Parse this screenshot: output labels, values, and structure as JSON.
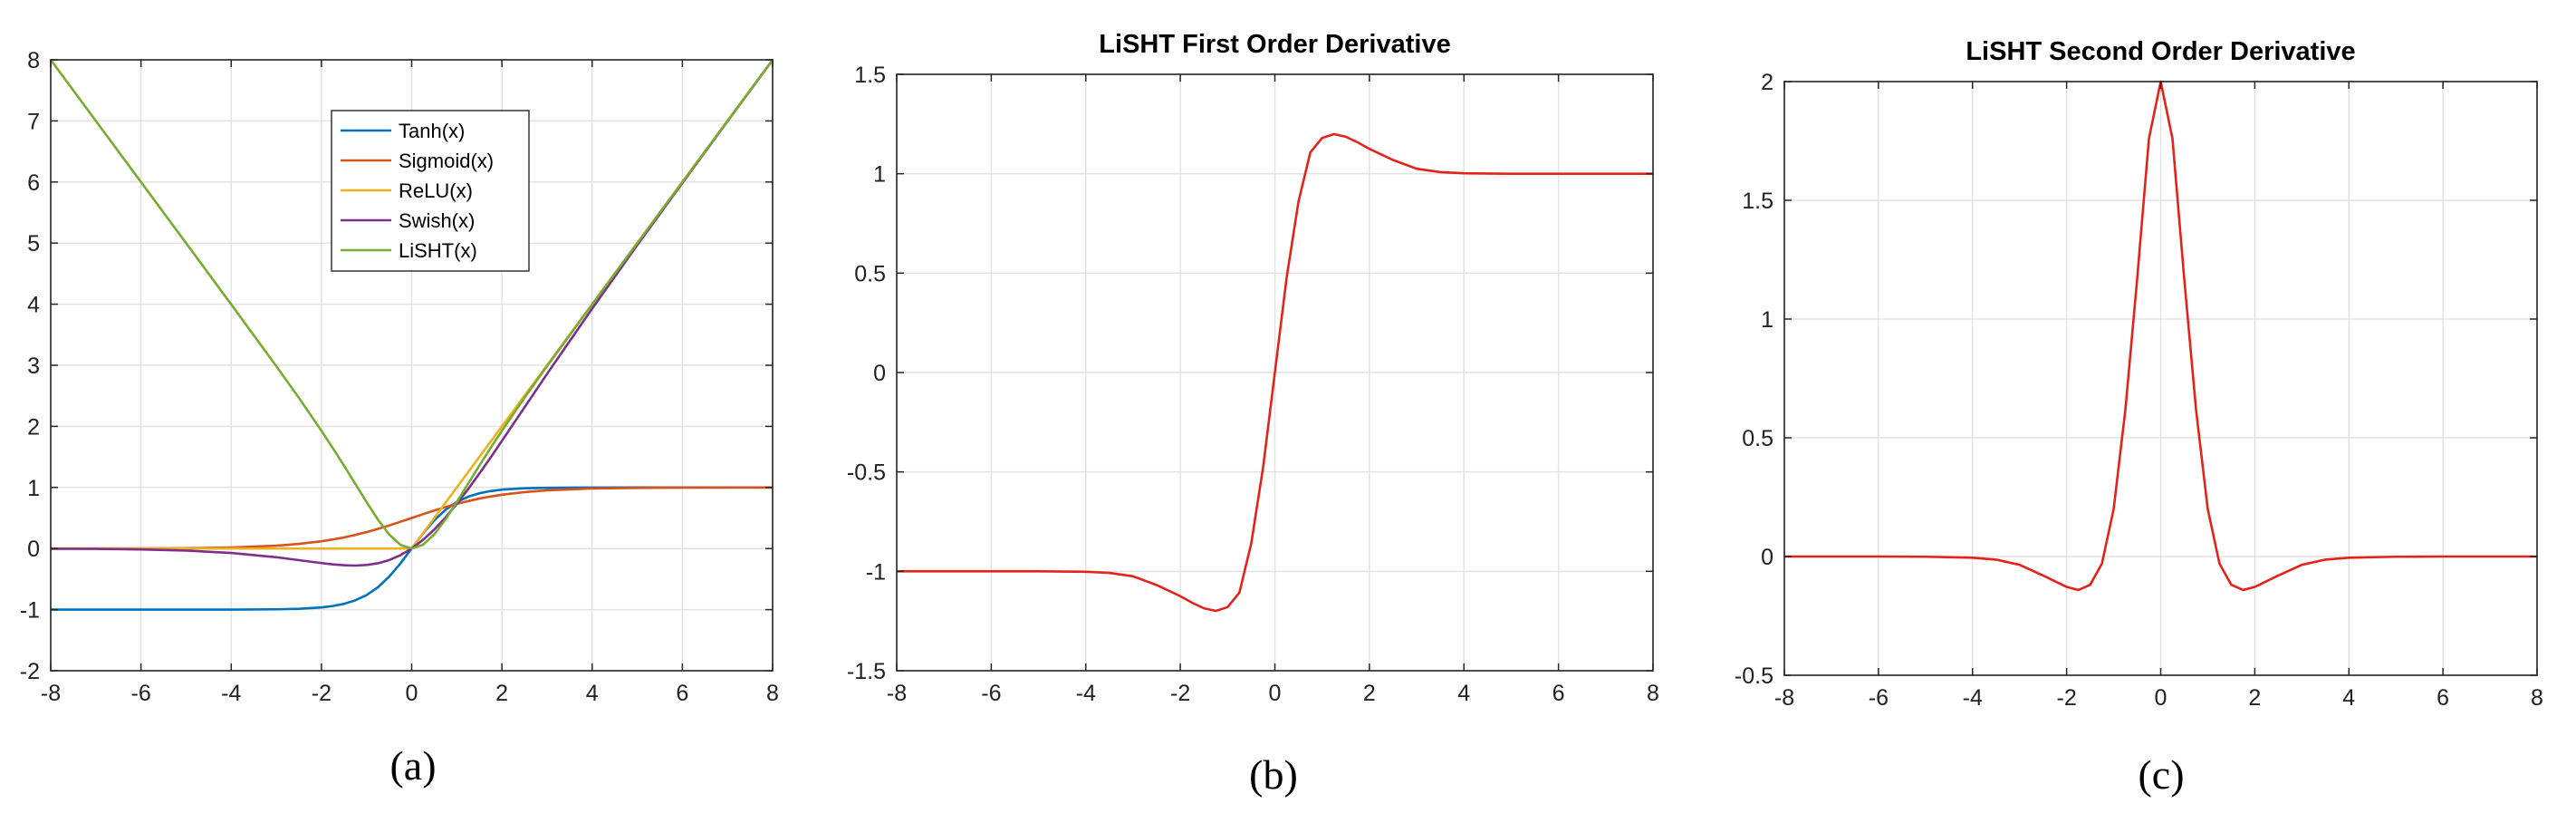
{
  "chart_data": [
    {
      "id": "a",
      "type": "line",
      "title": "",
      "caption": "(a)",
      "xlim": [
        -8,
        8
      ],
      "ylim": [
        -2,
        8
      ],
      "xticks": [
        -8,
        -6,
        -4,
        -2,
        0,
        2,
        4,
        6,
        8
      ],
      "yticks": [
        -2,
        -1,
        0,
        1,
        2,
        3,
        4,
        5,
        6,
        7,
        8
      ],
      "grid": true,
      "legend_position": "top-center",
      "x": [
        -8,
        -7,
        -6,
        -5,
        -4,
        -3,
        -2.5,
        -2,
        -1.75,
        -1.5,
        -1.25,
        -1,
        -0.75,
        -0.5,
        -0.25,
        0,
        0.25,
        0.5,
        0.75,
        1,
        1.25,
        1.5,
        1.75,
        2,
        2.5,
        3,
        4,
        5,
        6,
        7,
        8
      ],
      "series": [
        {
          "name": "Tanh(x)",
          "color": "#0072BD",
          "values": [
            -1,
            -1,
            -1,
            -1,
            -0.999,
            -0.995,
            -0.987,
            -0.964,
            -0.941,
            -0.905,
            -0.848,
            -0.762,
            -0.635,
            -0.462,
            -0.245,
            0,
            0.245,
            0.462,
            0.635,
            0.762,
            0.848,
            0.905,
            0.941,
            0.964,
            0.987,
            0.995,
            0.999,
            1,
            1,
            1,
            1
          ]
        },
        {
          "name": "Sigmoid(x)",
          "color": "#D95319",
          "values": [
            0.0003,
            0.0009,
            0.0025,
            0.0067,
            0.018,
            0.047,
            0.076,
            0.119,
            0.148,
            0.182,
            0.223,
            0.269,
            0.321,
            0.378,
            0.438,
            0.5,
            0.562,
            0.622,
            0.679,
            0.731,
            0.777,
            0.818,
            0.852,
            0.881,
            0.924,
            0.953,
            0.982,
            0.993,
            0.998,
            0.999,
            1
          ]
        },
        {
          "name": "ReLU(x)",
          "color": "#EDB120",
          "values": [
            0,
            0,
            0,
            0,
            0,
            0,
            0,
            0,
            0,
            0,
            0,
            0,
            0,
            0,
            0,
            0,
            0.25,
            0.5,
            0.75,
            1,
            1.25,
            1.5,
            1.75,
            2,
            2.5,
            3,
            4,
            5,
            6,
            7,
            8
          ]
        },
        {
          "name": "Swish(x)",
          "color": "#7E2F8E",
          "values": [
            -0.003,
            -0.006,
            -0.015,
            -0.033,
            -0.072,
            -0.142,
            -0.19,
            -0.238,
            -0.259,
            -0.273,
            -0.279,
            -0.269,
            -0.241,
            -0.189,
            -0.109,
            0,
            0.141,
            0.311,
            0.509,
            0.731,
            0.971,
            1.227,
            1.491,
            1.762,
            2.31,
            2.858,
            3.928,
            4.967,
            5.985,
            6.994,
            7.997
          ]
        },
        {
          "name": "LiSHT(x)",
          "color": "#77AC30",
          "values": [
            8,
            7,
            6,
            5,
            3.997,
            2.985,
            2.467,
            1.928,
            1.647,
            1.358,
            1.06,
            0.762,
            0.476,
            0.231,
            0.061,
            0,
            0.061,
            0.231,
            0.476,
            0.762,
            1.06,
            1.358,
            1.647,
            1.928,
            2.467,
            2.985,
            3.997,
            5,
            6,
            7,
            8
          ]
        }
      ]
    },
    {
      "id": "b",
      "type": "line",
      "title": "LiSHT First Order Derivative",
      "caption": "(b)",
      "xlim": [
        -8,
        8
      ],
      "ylim": [
        -1.5,
        1.5
      ],
      "xticks": [
        -8,
        -6,
        -4,
        -2,
        0,
        2,
        4,
        6,
        8
      ],
      "yticks": [
        -1.5,
        -1,
        -0.5,
        0,
        0.5,
        1,
        1.5
      ],
      "grid": true,
      "x": [
        -8,
        -6,
        -5,
        -4,
        -3.5,
        -3,
        -2.5,
        -2,
        -1.75,
        -1.5,
        -1.25,
        -1,
        -0.75,
        -0.5,
        -0.25,
        0,
        0.25,
        0.5,
        0.75,
        1,
        1.25,
        1.5,
        1.75,
        2,
        2.5,
        3,
        3.5,
        4,
        5,
        6,
        8
      ],
      "series": [
        {
          "name": "",
          "color": "#E3231A",
          "values": [
            -1,
            -1,
            -1,
            -1.002,
            -1.008,
            -1.025,
            -1.069,
            -1.125,
            -1.158,
            -1.186,
            -1.199,
            -1.18,
            -1.107,
            -0.86,
            -0.479,
            0,
            0.479,
            0.86,
            1.107,
            1.18,
            1.199,
            1.186,
            1.158,
            1.125,
            1.069,
            1.025,
            1.008,
            1.002,
            1,
            1,
            1
          ]
        }
      ]
    },
    {
      "id": "c",
      "type": "line",
      "title": "LiSHT Second Order Derivative",
      "caption": "(c)",
      "xlim": [
        -8,
        8
      ],
      "ylim": [
        -0.5,
        2
      ],
      "xticks": [
        -8,
        -6,
        -4,
        -2,
        0,
        2,
        4,
        6,
        8
      ],
      "yticks": [
        -0.5,
        0,
        0.5,
        1,
        1.5,
        2
      ],
      "grid": true,
      "x": [
        -8,
        -6,
        -5,
        -4,
        -3.5,
        -3,
        -2.5,
        -2,
        -1.75,
        -1.5,
        -1.25,
        -1,
        -0.75,
        -0.5,
        -0.25,
        0,
        0.25,
        0.5,
        0.75,
        1,
        1.25,
        1.5,
        1.75,
        2,
        2.5,
        3,
        3.5,
        4,
        5,
        6,
        8
      ],
      "series": [
        {
          "name": "",
          "color": "#E3231A",
          "values": [
            0,
            0,
            -0.001,
            -0.005,
            -0.013,
            -0.035,
            -0.08,
            -0.128,
            -0.141,
            -0.119,
            -0.03,
            0.2,
            0.62,
            1.17,
            1.76,
            2,
            1.76,
            1.17,
            0.62,
            0.2,
            -0.03,
            -0.119,
            -0.141,
            -0.128,
            -0.08,
            -0.035,
            -0.013,
            -0.005,
            -0.001,
            0,
            0
          ]
        }
      ]
    }
  ]
}
